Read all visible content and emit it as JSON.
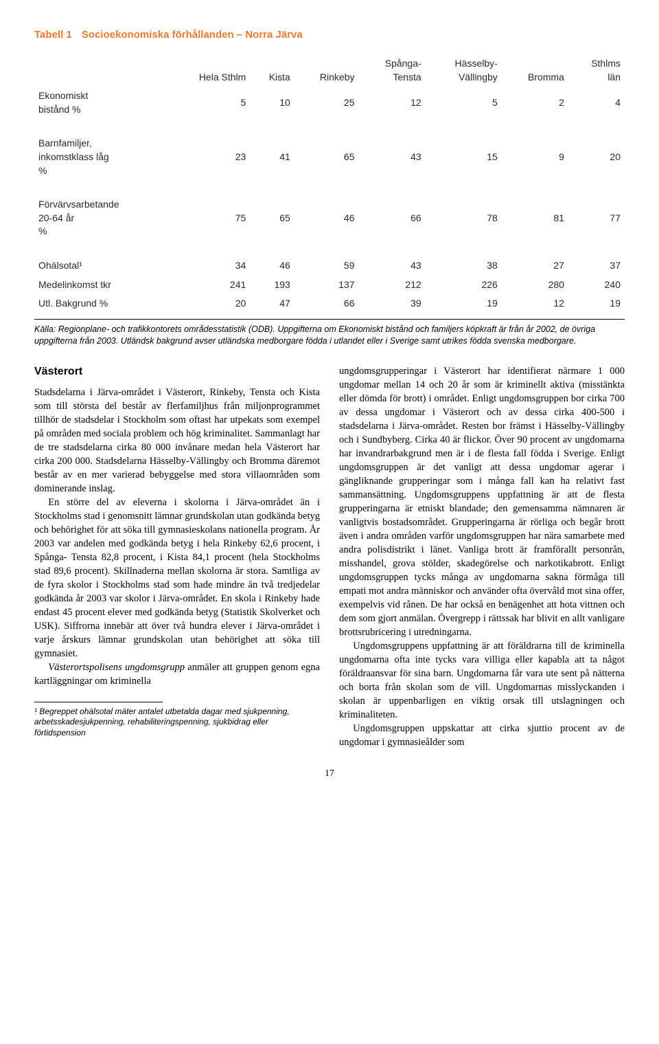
{
  "table": {
    "label": "Tabell 1",
    "title": "Socioekonomiska förhållanden – Norra Järva",
    "columns": [
      "Hela Sthlm",
      "Kista",
      "Rinkeby",
      "Spånga-\nTensta",
      "Hässelby-\nVällingby",
      "Bromma",
      "Sthlms\nlän"
    ],
    "rows": [
      {
        "label": "Ekonomiskt\nbistånd %",
        "values": [
          "5",
          "10",
          "25",
          "12",
          "5",
          "2",
          "4"
        ]
      },
      {
        "label": "Barnfamiljer,\ninkomstklass låg\n%",
        "values": [
          "23",
          "41",
          "65",
          "43",
          "15",
          "9",
          "20"
        ]
      },
      {
        "label": "Förvärvsarbetande\n20-64 år\n%",
        "values": [
          "75",
          "65",
          "46",
          "66",
          "78",
          "81",
          "77"
        ]
      },
      {
        "label": "Ohälsotal¹",
        "values": [
          "34",
          "46",
          "59",
          "43",
          "38",
          "27",
          "37"
        ]
      },
      {
        "label": "Medelinkomst tkr",
        "values": [
          "241",
          "193",
          "137",
          "212",
          "226",
          "280",
          "240"
        ]
      },
      {
        "label": "Utl. Bakgrund %",
        "values": [
          "20",
          "47",
          "66",
          "39",
          "19",
          "12",
          "19"
        ]
      }
    ],
    "source": "Källa: Regionplane- och trafikkontorets områdesstatistik (ODB). Uppgifterna om Ekonomiskt bistånd och familjers köpkraft är från år 2002, de övriga uppgifterna från 2003. Utländsk bakgrund avser utländska medborgare födda i utlandet eller i Sverige samt utrikes födda svenska medborgare."
  },
  "section_heading": "Västerort",
  "left_paragraphs": [
    "Stadsdelarna i Järva-området i Västerort, Rinkeby, Tensta och Kista som till största del består av flerfamiljhus från miljonprogrammet tillhör de stadsdelar i Stockholm som oftast har utpekats som exempel på områden med sociala problem och hög kriminalitet. Sammanlagt har de tre stadsdelarna cirka 80 000 invånare medan hela Västerort har cirka 200 000. Stadsdelarna Hässelby-Vällingby och Bromma däremot består av en mer varierad bebyggelse med stora villaområden som dominerande inslag.",
    "En större del av eleverna i skolorna i Järva-området än i Stockholms stad i genomsnitt lämnar grundskolan utan godkända betyg och behörighet för att söka till gymnasieskolans nationella program. År 2003 var andelen med godkända betyg i hela Rinkeby 62,6 procent, i Spånga- Tensta 82,8 procent, i Kista 84,1 procent (hela Stockholms stad 89,6 procent). Skillnaderna mellan skolorna är stora. Samtliga av de fyra skolor i Stockholms stad som hade mindre än två tredjedelar godkända år 2003 var skolor i Järva-området. En skola i Rinkeby hade endast 45 procent elever med godkända betyg (Statistik Skolverket och USK). Siffrorna innebär att över två hundra elever i Järva-området i varje årskurs lämnar grundskolan utan behörighet att söka till gymnasiet.",
    "Västerortspolisens ungdomsgrupp anmäler att gruppen genom egna kartläggningar om kriminella"
  ],
  "right_paragraphs": [
    "ungdomsgrupperingar i Västerort har identifierat närmare 1 000 ungdomar mellan 14 och 20 år som är kriminellt aktiva (misstänkta eller dömda för brott) i området. Enligt ungdomsgruppen bor cirka 700 av dessa ungdomar i Västerort och av dessa cirka 400-500 i stadsdelarna i Järva-området. Resten bor främst i Hässelby-Vällingby och i Sundbyberg. Cirka 40 är flickor. Över 90 procent av ungdomarna har invandrarbakgrund men är i de flesta fall födda i Sverige. Enligt ungdomsgruppen är det vanligt att dessa ungdomar agerar i gängliknande grupperingar som i många fall kan ha relativt fast sammansättning. Ungdomsgruppens uppfattning är att de flesta grupperingarna är etniskt blandade; den gemensamma nämnaren är vanligtvis bostadsområdet. Grupperingarna är rörliga och begår brott även i andra områden varför ungdomsgruppen har nära samarbete med andra polisdistrikt i länet. Vanliga brott är framförallt personrån, misshandel, grova stölder, skadegörelse och narkotikabrott. Enligt ungdomsgruppen tycks många av ungdomarna sakna förmåga till empati mot andra människor och använder ofta övervåld mot sina offer, exempelvis vid rånen. De har också en benägenhet att hota vittnen och dem som gjort anmälan. Övergrepp i rättssak har blivit en allt vanligare brottsrubricering i utredningarna.",
    "Ungdomsgruppens uppfattning är att föräldrarna till de kriminella ungdomarna ofta inte tycks vara villiga eller kapabla att ta något föräldraansvar för sina barn. Ungdomarna får vara ute sent på nätterna och borta från skolan som de vill. Ungdomarnas misslyckanden i skolan är uppenbarligen en viktig orsak till utslagningen och kriminaliteten.",
    "Ungdomsgruppen uppskattar att cirka sjuttio procent av de ungdomar i gymnasieålder som"
  ],
  "footnote": "¹ Begreppet ohälsotal mäter antalet utbetalda dagar med sjukpenning, arbetsskadesjukpenning, rehabiliteringspenning, sjukbidrag eller förtidspension",
  "page_number": "17"
}
